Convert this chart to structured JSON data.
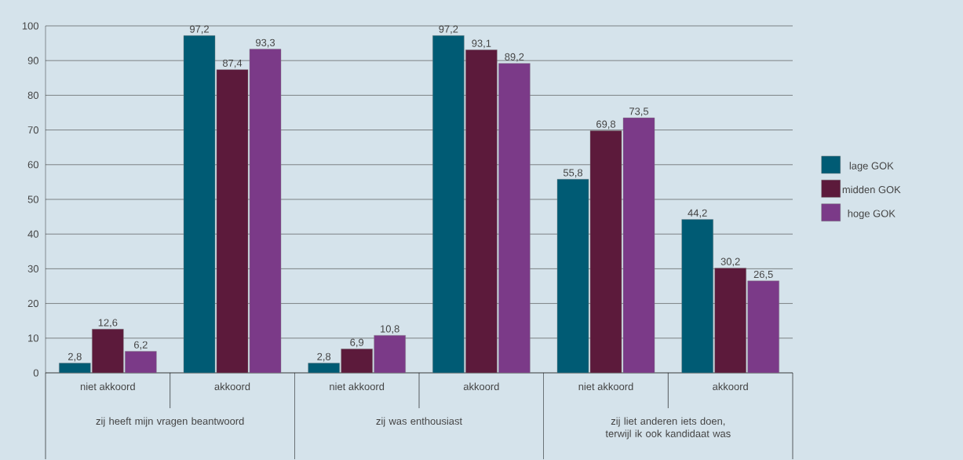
{
  "chart_data": {
    "type": "bar",
    "categories": [
      "niet akkoord",
      "akkoord",
      "niet akkoord",
      "akkoord",
      "niet akkoord",
      "akkoord"
    ],
    "series": [
      {
        "name": "lage GOK",
        "color": "#005b74",
        "values": [
          2.8,
          97.2,
          2.8,
          97.2,
          55.8,
          44.2
        ],
        "value_labels": [
          "2,8",
          "97,2",
          "2,8",
          "97,2",
          "55,8",
          "44,2"
        ]
      },
      {
        "name": "midden GOK",
        "color": "#5c1a3b",
        "values": [
          12.6,
          87.4,
          6.9,
          93.1,
          69.8,
          30.2
        ],
        "value_labels": [
          "12,6",
          "87,4",
          "6,9",
          "93,1",
          "69,8",
          "30,2"
        ]
      },
      {
        "name": "hoge GOK",
        "color": "#7b3a88",
        "values": [
          6.2,
          93.3,
          10.8,
          89.2,
          73.5,
          26.5
        ],
        "value_labels": [
          "6,2",
          "93,3",
          "10,8",
          "89,2",
          "73,5",
          "26,5"
        ]
      }
    ],
    "annotations": [
      "zij heeft mijn vragen beantwoord",
      "zij was enthousiast",
      "zij liet anderen iets doen, terwijl ik ook kandidaat was"
    ],
    "ylim": [
      0,
      100
    ],
    "yticks": [
      0,
      10,
      20,
      30,
      40,
      50,
      60,
      70,
      80,
      90,
      100
    ],
    "grid": "y",
    "legend": "right"
  }
}
